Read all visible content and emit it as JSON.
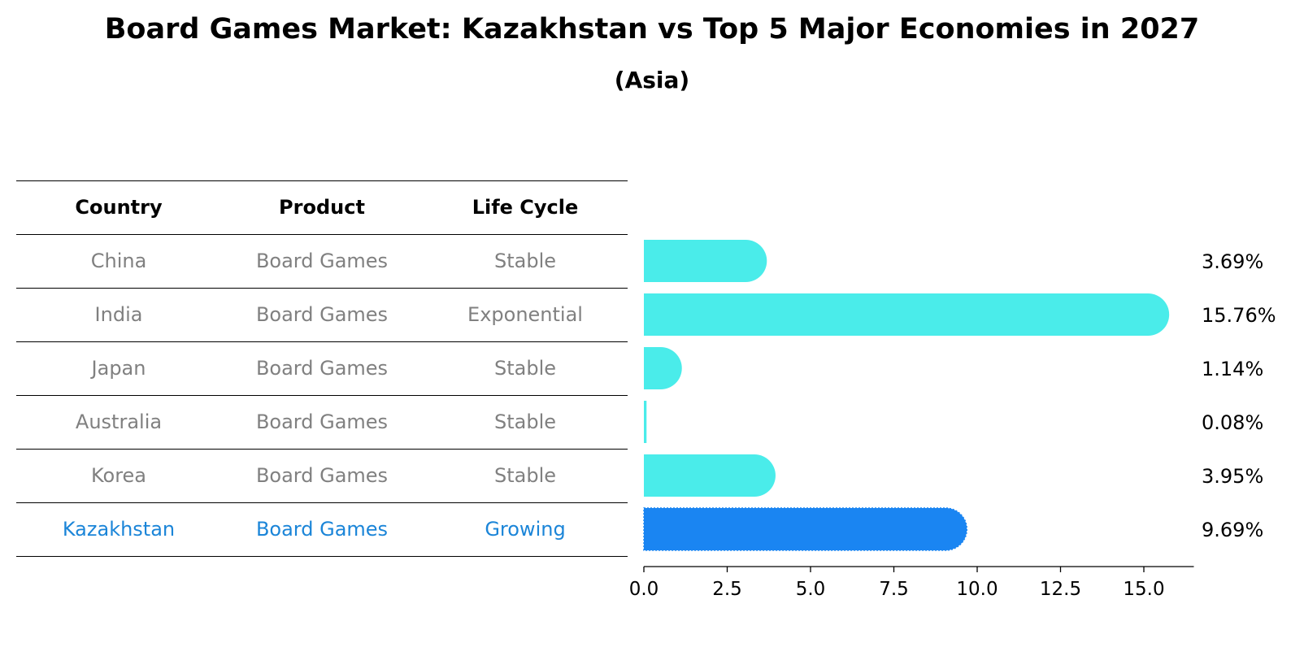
{
  "title": "Board Games Market: Kazakhstan vs Top 5 Major Economies in 2027",
  "subtitle": "(Asia)",
  "table": {
    "headers": [
      "Country",
      "Product",
      "Life Cycle"
    ],
    "rows": [
      [
        "China",
        "Board Games",
        "Stable"
      ],
      [
        "India",
        "Board Games",
        "Exponential"
      ],
      [
        "Japan",
        "Board Games",
        "Stable"
      ],
      [
        "Australia",
        "Board Games",
        "Stable"
      ],
      [
        "Korea",
        "Board Games",
        "Stable"
      ],
      [
        "Kazakhstan",
        "Board Games",
        "Growing"
      ]
    ],
    "highlight_row": 5,
    "colors": {
      "normal_text": "#808080",
      "highlight_text": "#1b85d8",
      "header_text": "#000000"
    }
  },
  "chart_data": {
    "type": "bar",
    "orientation": "horizontal",
    "categories": [
      "China",
      "India",
      "Japan",
      "Australia",
      "Korea",
      "Kazakhstan"
    ],
    "values": [
      3.69,
      15.76,
      1.14,
      0.08,
      3.95,
      9.69
    ],
    "data_labels": [
      "3.69%",
      "15.76%",
      "1.14%",
      "0.08%",
      "3.95%",
      "9.69%"
    ],
    "xlim": [
      0,
      16.5
    ],
    "xticks": [
      0.0,
      2.5,
      5.0,
      7.5,
      10.0,
      12.5,
      15.0
    ],
    "xtick_labels": [
      "0.0",
      "2.5",
      "5.0",
      "7.5",
      "10.0",
      "12.5",
      "15.0"
    ],
    "highlight_index": 5,
    "colors": {
      "bar": "#4aecea",
      "highlight": "#1a85f2"
    },
    "grid": false,
    "legend": "none"
  }
}
